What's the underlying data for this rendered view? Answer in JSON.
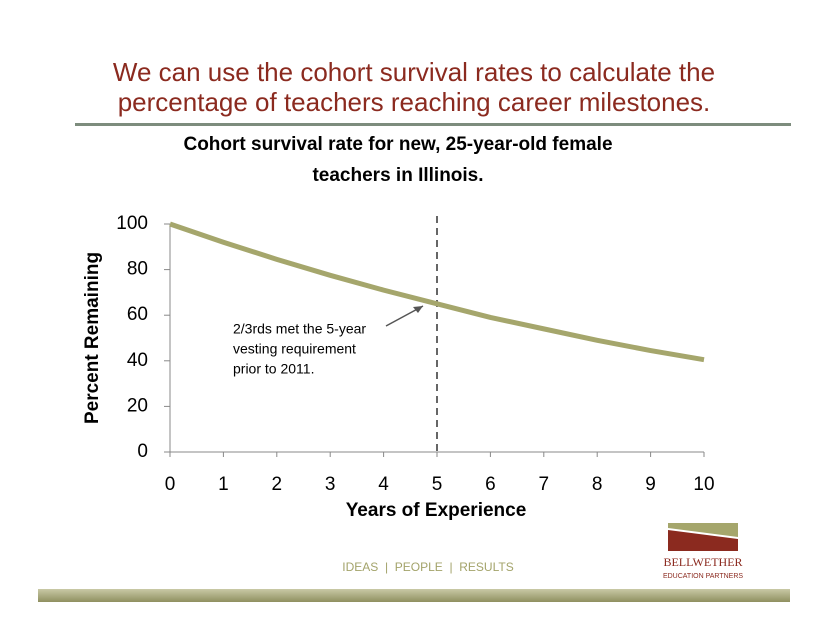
{
  "slide_title": [
    "We can use the cohort survival rates to calculate the",
    "percentage of teachers reaching career milestones."
  ],
  "chart_data": {
    "type": "line",
    "title": [
      "Cohort survival rate for new, 25-year-old female",
      "teachers in Illinois."
    ],
    "x_label": "Years of Experience",
    "y_label": "Percent Remaining",
    "x": [
      0,
      1,
      2,
      3,
      4,
      5,
      6,
      7,
      8,
      9,
      10
    ],
    "values": [
      100,
      92,
      84.5,
      77.5,
      71,
      65,
      59,
      54,
      49,
      44.5,
      40.5
    ],
    "color": "#a5a66c",
    "xlim": [
      0,
      10
    ],
    "xticks": [
      0,
      1,
      2,
      3,
      4,
      5,
      6,
      7,
      8,
      9,
      10
    ],
    "ylim": [
      0,
      100
    ],
    "yticks": [
      0,
      20,
      40,
      60,
      80,
      100
    ],
    "reference_x": 5,
    "annotation": [
      "2/3rds met the 5-year",
      "vesting requirement",
      "prior to 2011."
    ]
  },
  "footer": "IDEAS  |  PEOPLE  |  RESULTS",
  "logo": {
    "name": "BELLWETHER",
    "tagline": "EDUCATION PARTNERS"
  }
}
